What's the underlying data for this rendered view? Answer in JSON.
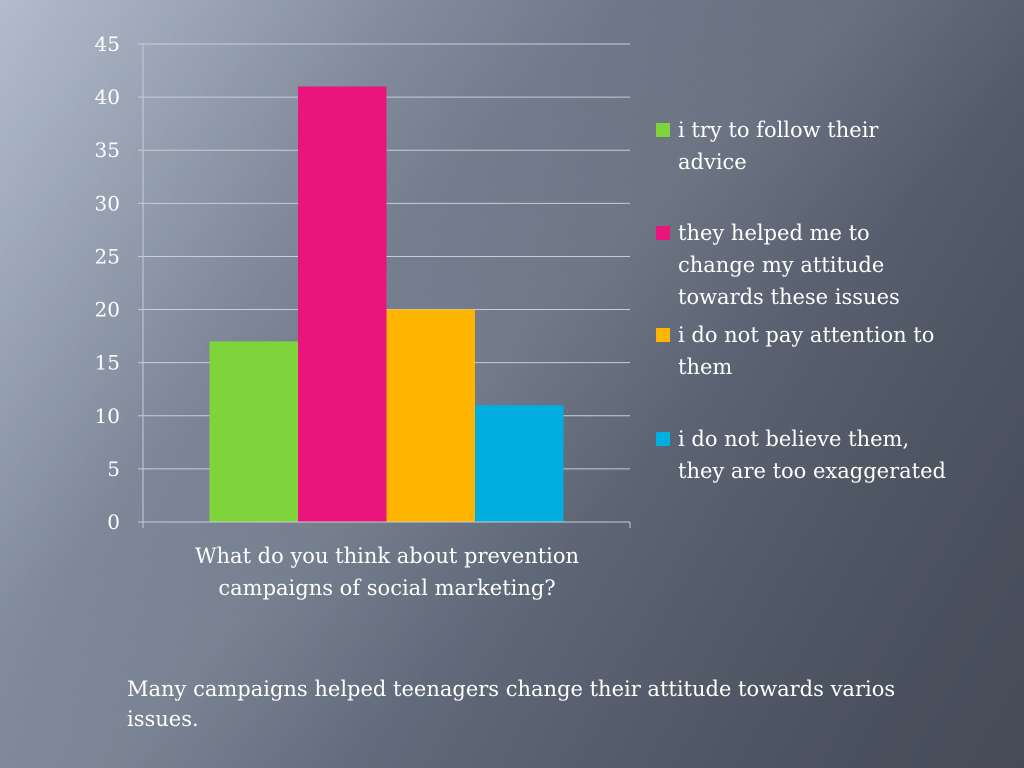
{
  "chart_data": {
    "type": "bar",
    "categories": [
      "What do you think about prevention campaigns of social marketing?"
    ],
    "series": [
      {
        "name": "i try to follow their advice",
        "values": [
          17
        ],
        "color": "#7ed43a"
      },
      {
        "name": "they helped me to change my attitude towards these issues",
        "values": [
          41
        ],
        "color": "#ea147d"
      },
      {
        "name": "i do not pay attention to them",
        "values": [
          20
        ],
        "color": "#ffb400"
      },
      {
        "name": "i do not believe them, they are too exaggerated",
        "values": [
          11
        ],
        "color": "#00aee0"
      }
    ],
    "ylim": [
      0,
      45
    ],
    "yticks": [
      "0",
      "5",
      "10",
      "15",
      "20",
      "25",
      "30",
      "35",
      "40",
      "45"
    ],
    "grid": true,
    "legend_position": "right",
    "title": "",
    "xlabel": "",
    "ylabel": ""
  },
  "caption": "Many campaigns helped teenagers change their attitude towards varios issues."
}
